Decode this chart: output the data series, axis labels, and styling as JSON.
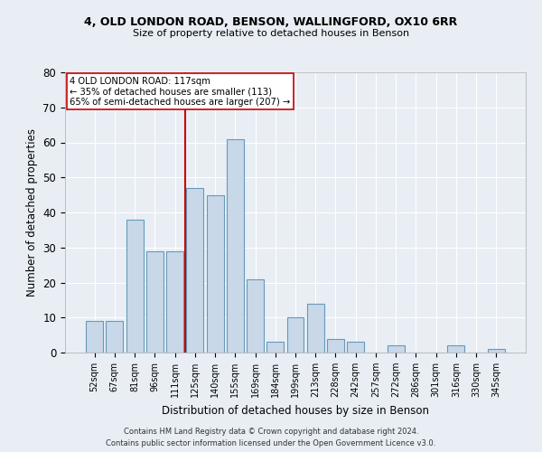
{
  "title_line1": "4, OLD LONDON ROAD, BENSON, WALLINGFORD, OX10 6RR",
  "title_line2": "Size of property relative to detached houses in Benson",
  "xlabel": "Distribution of detached houses by size in Benson",
  "ylabel": "Number of detached properties",
  "categories": [
    "52sqm",
    "67sqm",
    "81sqm",
    "96sqm",
    "111sqm",
    "125sqm",
    "140sqm",
    "155sqm",
    "169sqm",
    "184sqm",
    "199sqm",
    "213sqm",
    "228sqm",
    "242sqm",
    "257sqm",
    "272sqm",
    "286sqm",
    "301sqm",
    "316sqm",
    "330sqm",
    "345sqm"
  ],
  "values": [
    9,
    9,
    38,
    29,
    29,
    47,
    45,
    61,
    21,
    3,
    10,
    14,
    4,
    3,
    0,
    2,
    0,
    0,
    2,
    0,
    1
  ],
  "bar_color": "#c8d8e8",
  "bar_edge_color": "#6699bb",
  "vline_x": 4.5,
  "vline_color": "#cc0000",
  "annotation_line1": "4 OLD LONDON ROAD: 117sqm",
  "annotation_line2": "← 35% of detached houses are smaller (113)",
  "annotation_line3": "65% of semi-detached houses are larger (207) →",
  "annotation_box_color": "#ffffff",
  "annotation_box_edge": "#cc0000",
  "ylim": [
    0,
    80
  ],
  "yticks": [
    0,
    10,
    20,
    30,
    40,
    50,
    60,
    70,
    80
  ],
  "background_color": "#e8eef4",
  "plot_bg_color": "#e8eef4",
  "grid_color": "#ffffff",
  "footer_line1": "Contains HM Land Registry data © Crown copyright and database right 2024.",
  "footer_line2": "Contains public sector information licensed under the Open Government Licence v3.0."
}
